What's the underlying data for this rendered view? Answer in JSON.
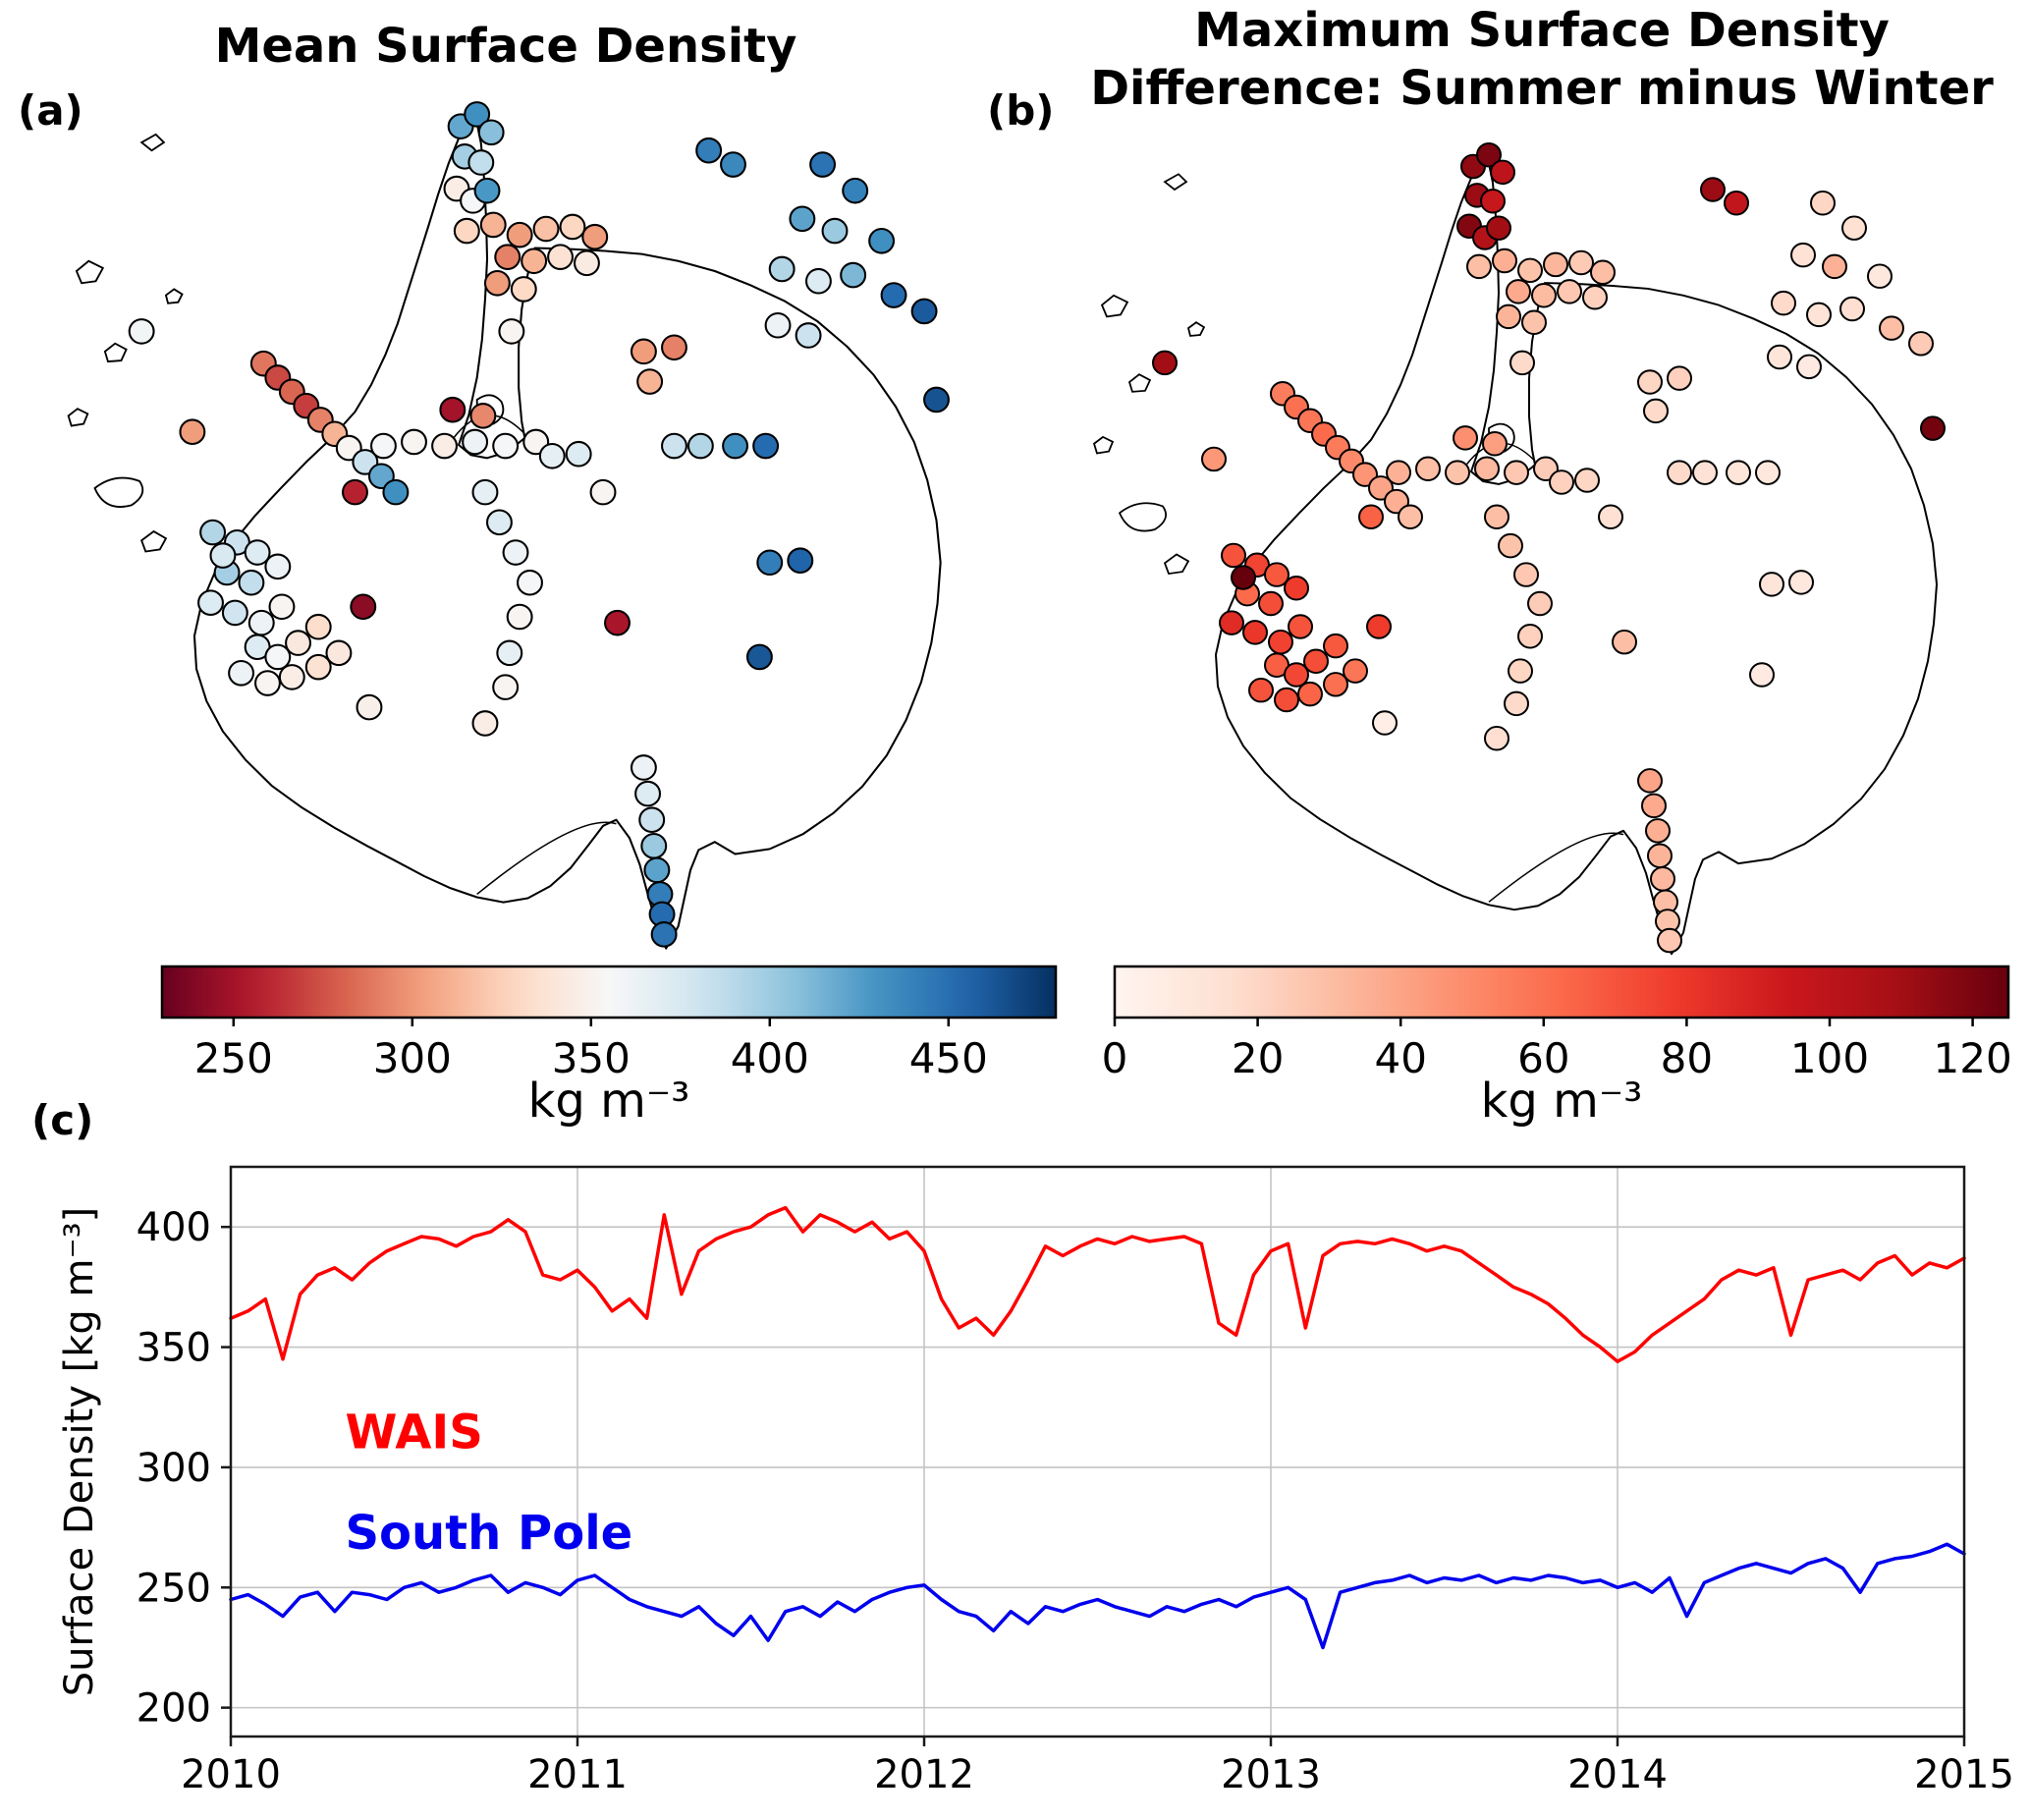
{
  "panel_a": {
    "label": "(a)",
    "title": "Mean Surface Density",
    "unit": "kg m⁻³"
  },
  "panel_b": {
    "label": "(b)",
    "title_line1": "Maximum Surface Density",
    "title_line2": "Difference: Summer minus Winter",
    "unit": "kg m⁻³"
  },
  "panel_c": {
    "label": "(c)"
  },
  "stations": [
    [
      432,
      28,
      420,
      115
    ],
    [
      448,
      16,
      432,
      120
    ],
    [
      462,
      34,
      408,
      100
    ],
    [
      436,
      58,
      398,
      112
    ],
    [
      452,
      64,
      386,
      96
    ],
    [
      428,
      90,
      346,
      118
    ],
    [
      444,
      102,
      356,
      104
    ],
    [
      458,
      92,
      428,
      110
    ],
    [
      438,
      132,
      328,
      30
    ],
    [
      464,
      126,
      312,
      36
    ],
    [
      490,
      136,
      302,
      28
    ],
    [
      516,
      130,
      318,
      33
    ],
    [
      542,
      128,
      328,
      25
    ],
    [
      564,
      138,
      302,
      30
    ],
    [
      478,
      158,
      292,
      38
    ],
    [
      504,
      162,
      312,
      31
    ],
    [
      530,
      158,
      336,
      26
    ],
    [
      556,
      164,
      344,
      22
    ],
    [
      468,
      184,
      302,
      34
    ],
    [
      494,
      190,
      330,
      28
    ],
    [
      482,
      232,
      352,
      18
    ],
    [
      676,
      52,
      442,
      112
    ],
    [
      700,
      66,
      436,
      98
    ],
    [
      788,
      66,
      448,
      20
    ],
    [
      820,
      92,
      440,
      15
    ],
    [
      768,
      120,
      422,
      14
    ],
    [
      800,
      132,
      402,
      35
    ],
    [
      846,
      142,
      432,
      10
    ],
    [
      748,
      170,
      392,
      18
    ],
    [
      784,
      182,
      372,
      13
    ],
    [
      818,
      176,
      412,
      16
    ],
    [
      858,
      196,
      452,
      30
    ],
    [
      744,
      226,
      362,
      12
    ],
    [
      774,
      236,
      382,
      8
    ],
    [
      888,
      212,
      460,
      25
    ],
    [
      900,
      300,
      464,
      122
    ],
    [
      612,
      252,
      302,
      20
    ],
    [
      642,
      248,
      292,
      22
    ],
    [
      618,
      282,
      312,
      18
    ],
    [
      118,
      232,
      358,
      110
    ],
    [
      168,
      332,
      302,
      45
    ],
    [
      238,
      264,
      288,
      55
    ],
    [
      252,
      278,
      272,
      60
    ],
    [
      266,
      292,
      282,
      58
    ],
    [
      280,
      306,
      268,
      62
    ],
    [
      294,
      320,
      292,
      56
    ],
    [
      308,
      334,
      312,
      50
    ],
    [
      322,
      348,
      352,
      46
    ],
    [
      338,
      362,
      382,
      40
    ],
    [
      354,
      376,
      420,
      36
    ],
    [
      368,
      392,
      432,
      30
    ],
    [
      188,
      432,
      392,
      70
    ],
    [
      212,
      442,
      382,
      75
    ],
    [
      232,
      452,
      372,
      68
    ],
    [
      202,
      472,
      398,
      62
    ],
    [
      226,
      482,
      386,
      72
    ],
    [
      252,
      466,
      362,
      78
    ],
    [
      186,
      502,
      372,
      85
    ],
    [
      210,
      512,
      380,
      80
    ],
    [
      236,
      522,
      362,
      76
    ],
    [
      256,
      506,
      352,
      70
    ],
    [
      232,
      546,
      372,
      66
    ],
    [
      252,
      556,
      356,
      74
    ],
    [
      272,
      542,
      342,
      72
    ],
    [
      292,
      526,
      332,
      68
    ],
    [
      216,
      572,
      362,
      70
    ],
    [
      242,
      582,
      352,
      72
    ],
    [
      266,
      576,
      346,
      64
    ],
    [
      292,
      566,
      336,
      60
    ],
    [
      312,
      552,
      342,
      58
    ],
    [
      198,
      455,
      375,
      125
    ],
    [
      328,
      392,
      258,
      65
    ],
    [
      336,
      506,
      242,
      78
    ],
    [
      356,
      346,
      356,
      35
    ],
    [
      386,
      342,
      352,
      30
    ],
    [
      416,
      346,
      346,
      28
    ],
    [
      446,
      342,
      362,
      32
    ],
    [
      476,
      346,
      356,
      26
    ],
    [
      506,
      342,
      352,
      24
    ],
    [
      424,
      310,
      250,
      48
    ],
    [
      454,
      316,
      294,
      42
    ],
    [
      522,
      356,
      366,
      22
    ],
    [
      548,
      354,
      372,
      20
    ],
    [
      572,
      392,
      352,
      15
    ],
    [
      642,
      346,
      382,
      18
    ],
    [
      668,
      346,
      392,
      14
    ],
    [
      702,
      346,
      432,
      12
    ],
    [
      732,
      346,
      452,
      10
    ],
    [
      456,
      392,
      366,
      30
    ],
    [
      470,
      422,
      372,
      28
    ],
    [
      486,
      452,
      362,
      26
    ],
    [
      500,
      482,
      356,
      24
    ],
    [
      490,
      516,
      352,
      22
    ],
    [
      480,
      552,
      366,
      20
    ],
    [
      476,
      586,
      352,
      18
    ],
    [
      456,
      622,
      346,
      16
    ],
    [
      342,
      606,
      348,
      5
    ],
    [
      586,
      522,
      252,
      30
    ],
    [
      726,
      556,
      462,
      8
    ],
    [
      736,
      462,
      442,
      12
    ],
    [
      766,
      460,
      456,
      10
    ],
    [
      612,
      666,
      362,
      40
    ],
    [
      616,
      692,
      372,
      38
    ],
    [
      620,
      718,
      382,
      36
    ],
    [
      622,
      744,
      402,
      34
    ],
    [
      625,
      768,
      422,
      32
    ],
    [
      628,
      792,
      442,
      30
    ],
    [
      630,
      812,
      452,
      28
    ],
    [
      632,
      832,
      448,
      26
    ]
  ],
  "chart_data": [
    {
      "type": "scatter",
      "id": "map_mean",
      "panel": "(a)",
      "title": "Mean Surface Density",
      "unit": "kg m⁻³",
      "colormap": "RdBu",
      "domain": [
        230,
        480
      ],
      "colorbar_ticks": [
        250,
        300,
        350,
        400,
        450
      ],
      "value_index": 2,
      "points_ref": "stations",
      "note": "station dots on Antarctica map, value = mean surface density kg m-3"
    },
    {
      "type": "scatter",
      "id": "map_diff",
      "panel": "(b)",
      "title": "Maximum Surface Density Difference: Summer minus Winter",
      "unit": "kg m⁻³",
      "colormap": "Reds",
      "domain": [
        0,
        125
      ],
      "colorbar_ticks": [
        0,
        20,
        40,
        60,
        80,
        100,
        120
      ],
      "value_index": 3,
      "points_ref": "stations",
      "note": "station dots on Antarctica map, value = max summer-minus-winter density difference kg m-3"
    },
    {
      "type": "line",
      "id": "timeseries",
      "panel": "(c)",
      "ylabel": "Surface Density [kg m⁻³]",
      "xlim": [
        2010,
        2015
      ],
      "ylim": [
        188,
        425
      ],
      "xticks": [
        2010,
        2011,
        2012,
        2013,
        2014,
        2015
      ],
      "yticks": [
        200,
        250,
        300,
        350,
        400
      ],
      "grid": true,
      "x_start": 2010,
      "x_step": 0.05,
      "series": [
        {
          "name": "WAIS",
          "color": "#ff0000",
          "label_pos": [
            2010.33,
            308
          ],
          "values": [
            362,
            365,
            370,
            345,
            372,
            380,
            383,
            378,
            385,
            390,
            393,
            396,
            395,
            392,
            396,
            398,
            403,
            398,
            380,
            378,
            382,
            375,
            365,
            370,
            362,
            405,
            372,
            390,
            395,
            398,
            400,
            405,
            408,
            398,
            405,
            402,
            398,
            402,
            395,
            398,
            390,
            370,
            358,
            362,
            355,
            365,
            378,
            392,
            388,
            392,
            395,
            393,
            396,
            394,
            395,
            396,
            393,
            360,
            355,
            380,
            390,
            393,
            358,
            388,
            393,
            394,
            393,
            395,
            393,
            390,
            392,
            390,
            385,
            380,
            375,
            372,
            368,
            362,
            355,
            350,
            344,
            348,
            355,
            360,
            365,
            370,
            378,
            382,
            380,
            383,
            355,
            378,
            380,
            382,
            378,
            385,
            388,
            380,
            385,
            383,
            387
          ]
        },
        {
          "name": "South Pole",
          "color": "#0000ee",
          "label_pos": [
            2010.33,
            266
          ],
          "values": [
            245,
            247,
            243,
            238,
            246,
            248,
            240,
            248,
            247,
            245,
            250,
            252,
            248,
            250,
            253,
            255,
            248,
            252,
            250,
            247,
            253,
            255,
            250,
            245,
            242,
            240,
            238,
            242,
            235,
            230,
            238,
            228,
            240,
            242,
            238,
            244,
            240,
            245,
            248,
            250,
            251,
            245,
            240,
            238,
            232,
            240,
            235,
            242,
            240,
            243,
            245,
            242,
            240,
            238,
            242,
            240,
            243,
            245,
            242,
            246,
            248,
            250,
            245,
            225,
            248,
            250,
            252,
            253,
            255,
            252,
            254,
            253,
            255,
            252,
            254,
            253,
            255,
            254,
            252,
            253,
            250,
            252,
            248,
            254,
            238,
            252,
            255,
            258,
            260,
            258,
            256,
            260,
            262,
            258,
            248,
            260,
            262,
            263,
            265,
            268,
            264
          ]
        }
      ]
    }
  ]
}
